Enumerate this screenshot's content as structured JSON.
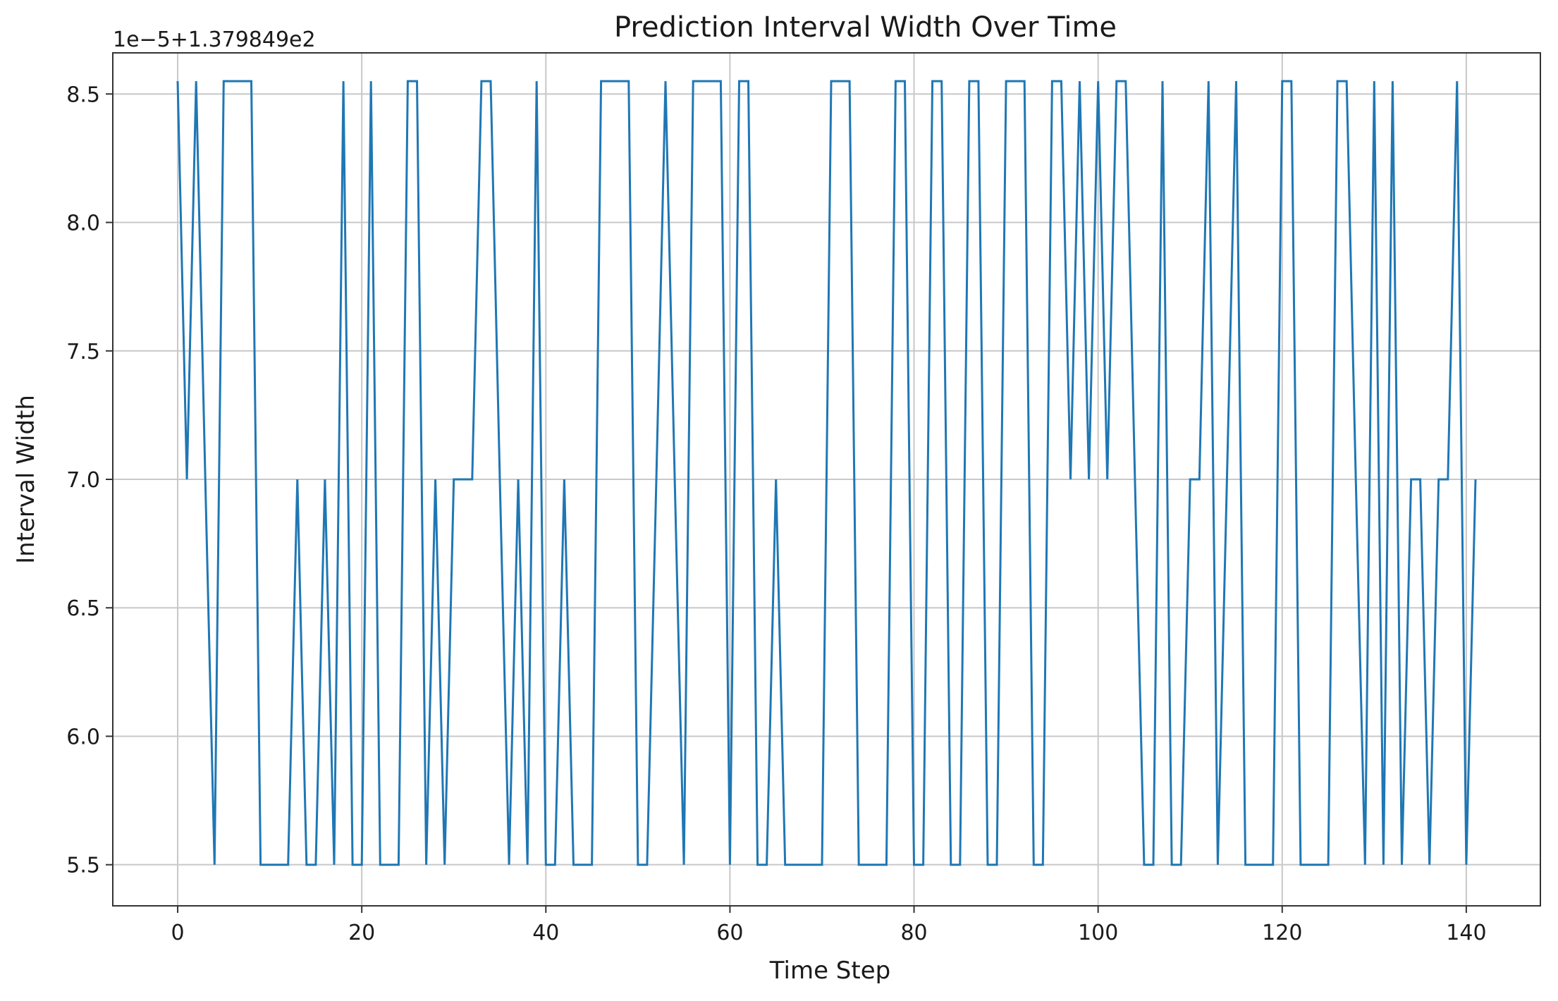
{
  "chart_data": {
    "type": "line",
    "title": "Prediction Interval Width Over Time",
    "xlabel": "Time Step",
    "ylabel": "Interval Width",
    "y_offset_label": "1e−5+1.379849e2",
    "xlim": [
      -7.05,
      148.05
    ],
    "ylim": [
      5.34,
      8.66
    ],
    "xticks": [
      0,
      20,
      40,
      60,
      80,
      100,
      120,
      140
    ],
    "yticks": [
      5.5,
      6.0,
      6.5,
      7.0,
      7.5,
      8.0,
      8.5
    ],
    "ytick_labels": [
      "5.5",
      "6.0",
      "6.5",
      "7.0",
      "7.5",
      "8.0",
      "8.5"
    ],
    "grid": true,
    "line_color": "#1f77b4",
    "series": [
      {
        "x": [
          0,
          1,
          2,
          3,
          4,
          5,
          6,
          7,
          8,
          9,
          10,
          11,
          12,
          13,
          14,
          15,
          16,
          17,
          18,
          19,
          20,
          21,
          22,
          23,
          24,
          25,
          26,
          27,
          28,
          29,
          30,
          31,
          32,
          33,
          34,
          35,
          36,
          37,
          38,
          39,
          40,
          41,
          42,
          43,
          44,
          45,
          46,
          47,
          48,
          49,
          50,
          51,
          52,
          53,
          54,
          55,
          56,
          57,
          58,
          59,
          60,
          61,
          62,
          63,
          64,
          65,
          66,
          67,
          68,
          69,
          70,
          71,
          72,
          73,
          74,
          75,
          76,
          77,
          78,
          79,
          80,
          81,
          82,
          83,
          84,
          85,
          86,
          87,
          88,
          89,
          90,
          91,
          92,
          93,
          94,
          95,
          96,
          97,
          98,
          99,
          100,
          101,
          102,
          103,
          104,
          105,
          106,
          107,
          108,
          109,
          110,
          111,
          112,
          113,
          114,
          115,
          116,
          117,
          118,
          119,
          120,
          121,
          122,
          123,
          124,
          125,
          126,
          127,
          128,
          129,
          130,
          131,
          132,
          133,
          134,
          135,
          136,
          137,
          138,
          139,
          140,
          141
        ],
        "y": [
          8.55,
          7.0,
          8.55,
          7.0,
          5.5,
          8.55,
          8.55,
          8.55,
          8.55,
          5.5,
          5.5,
          5.5,
          5.5,
          7.0,
          5.5,
          5.5,
          7.0,
          5.5,
          8.55,
          5.5,
          5.5,
          8.55,
          5.5,
          5.5,
          5.5,
          8.55,
          8.55,
          5.5,
          7.0,
          5.5,
          7.0,
          7.0,
          7.0,
          8.55,
          8.55,
          7.0,
          5.5,
          7.0,
          5.5,
          8.55,
          5.5,
          5.5,
          7.0,
          5.5,
          5.5,
          5.5,
          8.55,
          8.55,
          8.55,
          8.55,
          5.5,
          5.5,
          7.0,
          8.55,
          7.0,
          5.5,
          8.55,
          8.55,
          8.55,
          8.55,
          5.5,
          8.55,
          8.55,
          5.5,
          5.5,
          7.0,
          5.5,
          5.5,
          5.5,
          5.5,
          5.5,
          8.55,
          8.55,
          8.55,
          5.5,
          5.5,
          5.5,
          5.5,
          8.55,
          8.55,
          5.5,
          5.5,
          8.55,
          8.55,
          5.5,
          5.5,
          8.55,
          8.55,
          5.5,
          5.5,
          8.55,
          8.55,
          8.55,
          5.5,
          5.5,
          8.55,
          8.55,
          7.0,
          8.55,
          7.0,
          8.55,
          7.0,
          8.55,
          8.55,
          7.0,
          5.5,
          5.5,
          8.55,
          5.5,
          5.5,
          7.0,
          7.0,
          8.55,
          5.5,
          7.0,
          8.55,
          5.5,
          5.5,
          5.5,
          5.5,
          8.55,
          8.55,
          5.5,
          5.5,
          5.5,
          5.5,
          8.55,
          8.55,
          7.0,
          5.5,
          8.55,
          5.5,
          8.55,
          5.5,
          7.0,
          7.0,
          5.5,
          7.0,
          7.0,
          8.55,
          5.5,
          7.0
        ]
      }
    ]
  }
}
